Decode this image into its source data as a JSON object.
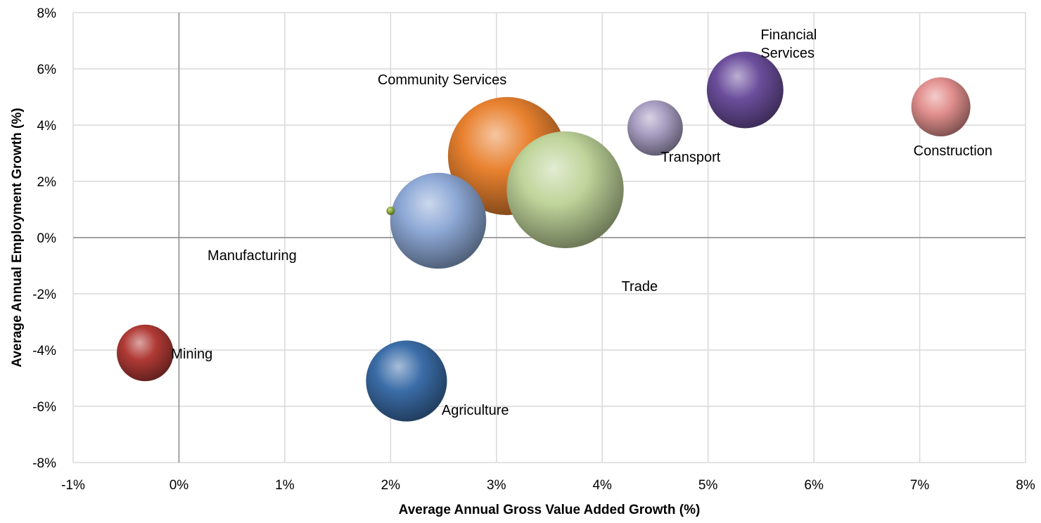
{
  "chart_data": {
    "type": "bubble",
    "title": "",
    "xlabel": "Average Annual Gross Value Added Growth (%)",
    "ylabel": "Average Annual Employment Growth (%)",
    "xlim": [
      -1,
      8
    ],
    "ylim": [
      -8,
      8
    ],
    "x_ticks": [
      -1,
      0,
      1,
      2,
      3,
      4,
      5,
      6,
      7,
      8
    ],
    "y_ticks": [
      -8,
      -6,
      -4,
      -2,
      0,
      2,
      4,
      6,
      8
    ],
    "x_tick_labels": [
      "-1%",
      "0%",
      "1%",
      "2%",
      "3%",
      "4%",
      "5%",
      "6%",
      "7%",
      "8%"
    ],
    "y_tick_labels": [
      "-8%",
      "-6%",
      "-4%",
      "-2%",
      "0%",
      "2%",
      "4%",
      "6%",
      "8%"
    ],
    "grid": true,
    "legend": "none",
    "series": [
      {
        "label": "Community Services",
        "x": 3.1,
        "y": 2.9,
        "size": 100,
        "color": "#E8812F"
      },
      {
        "label": "Trade",
        "x": 3.65,
        "y": 1.7,
        "size": 98,
        "color": "#BFD49A"
      },
      {
        "label": "Manufacturing",
        "x": 2.45,
        "y": 0.6,
        "size": 66,
        "color": "#8EA9D6"
      },
      {
        "label": "",
        "x": 2.0,
        "y": 0.95,
        "size": 0.5,
        "color": "#8FAE3C"
      },
      {
        "label": "Agriculture",
        "x": 2.15,
        "y": -5.1,
        "size": 47,
        "color": "#3B6DA8"
      },
      {
        "label": "Mining",
        "x": -0.32,
        "y": -4.1,
        "size": 23,
        "color": "#B03A35"
      },
      {
        "label": "Transport",
        "x": 4.5,
        "y": 3.9,
        "size": 22,
        "color": "#A89EC2"
      },
      {
        "label": "Financial Services",
        "x": 5.35,
        "y": 5.25,
        "size": 42,
        "color": "#6B4E9C"
      },
      {
        "label": "Construction",
        "x": 7.2,
        "y": 4.65,
        "size": 25,
        "color": "#E2908E"
      }
    ]
  }
}
